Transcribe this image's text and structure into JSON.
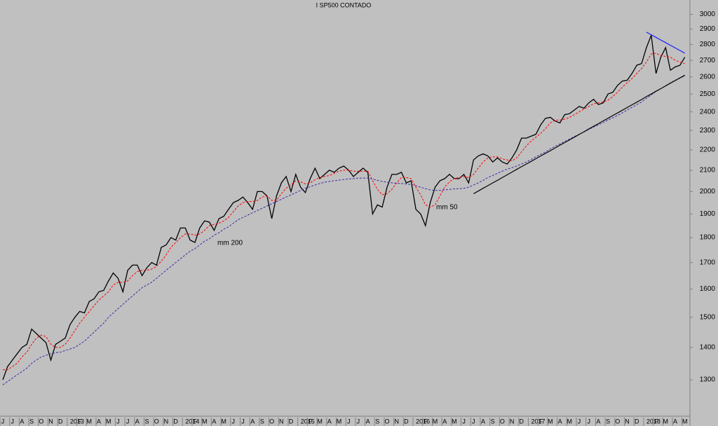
{
  "chart_data": {
    "type": "line",
    "title": "I SP500 CONTADO",
    "log_scale": true,
    "grid": false,
    "ylim": [
      1200,
      3100
    ],
    "yticks": [
      1300,
      1400,
      1500,
      1600,
      1700,
      1800,
      1900,
      2000,
      2100,
      2200,
      2300,
      2400,
      2500,
      2600,
      2700,
      2800,
      2900,
      3000
    ],
    "categories": [
      "J",
      null,
      "J",
      null,
      "A",
      null,
      "S",
      null,
      "O",
      null,
      "N",
      null,
      "D",
      null,
      "2013",
      null,
      "F",
      null,
      "M",
      null,
      "A",
      null,
      "M",
      null,
      "J",
      null,
      "J",
      null,
      "A",
      null,
      "S",
      null,
      "O",
      null,
      "N",
      null,
      "D",
      null,
      "2014",
      null,
      "F",
      null,
      "M",
      null,
      "A",
      null,
      "M",
      null,
      "J",
      null,
      "J",
      null,
      "A",
      null,
      "S",
      null,
      "O",
      null,
      "N",
      null,
      "D",
      null,
      "2015",
      null,
      "F",
      null,
      "M",
      null,
      "A",
      null,
      "M",
      null,
      "J",
      null,
      "J",
      null,
      "A",
      null,
      "S",
      null,
      "O",
      null,
      "N",
      null,
      "D",
      null,
      "2016",
      null,
      "F",
      null,
      "M",
      null,
      "A",
      null,
      "M",
      null,
      "J",
      null,
      "J",
      null,
      "A",
      null,
      "S",
      null,
      "O",
      null,
      "N",
      null,
      "D",
      null,
      "2017",
      null,
      "F",
      null,
      "M",
      null,
      "A",
      null,
      "M",
      null,
      "J",
      null,
      "J",
      null,
      "A",
      null,
      "S",
      null,
      "O",
      null,
      "N",
      null,
      "D",
      null,
      "2018",
      null,
      "F",
      null,
      "M",
      null,
      "A",
      null,
      "M",
      null
    ],
    "series": [
      {
        "color": "#000000",
        "dash": false,
        "values": [
          1300,
          1340,
          1360,
          1380,
          1400,
          1410,
          1460,
          1445,
          1430,
          1415,
          1360,
          1410,
          1420,
          1430,
          1475,
          1500,
          1520,
          1515,
          1555,
          1565,
          1590,
          1595,
          1630,
          1660,
          1640,
          1590,
          1670,
          1690,
          1690,
          1650,
          1680,
          1700,
          1690,
          1760,
          1770,
          1800,
          1790,
          1840,
          1840,
          1790,
          1780,
          1840,
          1870,
          1865,
          1830,
          1880,
          1890,
          1920,
          1950,
          1960,
          1975,
          1950,
          1920,
          2000,
          2000,
          1980,
          1880,
          1980,
          2040,
          2070,
          2000,
          2080,
          2020,
          1995,
          2060,
          2110,
          2060,
          2080,
          2100,
          2090,
          2110,
          2120,
          2100,
          2070,
          2090,
          2110,
          2090,
          1900,
          1940,
          1930,
          2020,
          2080,
          2080,
          2090,
          2040,
          2050,
          1920,
          1900,
          1850,
          1950,
          2020,
          2050,
          2060,
          2080,
          2060,
          2060,
          2080,
          2040,
          2150,
          2170,
          2180,
          2170,
          2140,
          2160,
          2140,
          2130,
          2160,
          2200,
          2260,
          2260,
          2270,
          2280,
          2330,
          2365,
          2370,
          2350,
          2340,
          2385,
          2390,
          2410,
          2430,
          2420,
          2450,
          2470,
          2440,
          2450,
          2500,
          2510,
          2550,
          2575,
          2580,
          2620,
          2670,
          2680,
          2780,
          2860,
          2620,
          2720,
          2780,
          2640,
          2660,
          2670,
          2720,
          null
        ]
      },
      {
        "color": "#ff0000",
        "dash": true,
        "values": [
          1330,
          1330,
          1340,
          1350,
          1370,
          1385,
          1410,
          1430,
          1440,
          1435,
          1410,
          1400,
          1400,
          1410,
          1430,
          1455,
          1480,
          1500,
          1520,
          1540,
          1560,
          1575,
          1590,
          1615,
          1625,
          1625,
          1630,
          1650,
          1665,
          1670,
          1670,
          1675,
          1685,
          1705,
          1730,
          1760,
          1780,
          1800,
          1815,
          1815,
          1810,
          1815,
          1830,
          1850,
          1855,
          1860,
          1870,
          1885,
          1910,
          1935,
          1950,
          1955,
          1955,
          1960,
          1975,
          1980,
          1960,
          1960,
          1990,
          2015,
          2030,
          2050,
          2045,
          2035,
          2040,
          2055,
          2065,
          2070,
          2075,
          2085,
          2095,
          2100,
          2100,
          2095,
          2095,
          2095,
          2095,
          2050,
          2010,
          1985,
          1990,
          2010,
          2040,
          2065,
          2065,
          2060,
          2020,
          1985,
          1940,
          1930,
          1940,
          1980,
          2020,
          2045,
          2060,
          2065,
          2070,
          2065,
          2080,
          2110,
          2140,
          2160,
          2165,
          2165,
          2155,
          2150,
          2145,
          2160,
          2190,
          2220,
          2245,
          2265,
          2285,
          2310,
          2340,
          2355,
          2355,
          2360,
          2370,
          2385,
          2400,
          2415,
          2430,
          2445,
          2450,
          2455,
          2465,
          2485,
          2510,
          2540,
          2565,
          2590,
          2620,
          2650,
          2690,
          2740,
          2745,
          2730,
          2725,
          2720,
          2700,
          2690,
          2680,
          null
        ]
      },
      {
        "color": "#3a2aa8",
        "dash": true,
        "values": [
          1285,
          1295,
          1305,
          1315,
          1325,
          1335,
          1350,
          1360,
          1370,
          1375,
          1380,
          1383,
          1385,
          1390,
          1395,
          1400,
          1410,
          1420,
          1435,
          1450,
          1465,
          1480,
          1500,
          1515,
          1530,
          1545,
          1560,
          1575,
          1590,
          1605,
          1615,
          1625,
          1640,
          1655,
          1670,
          1685,
          1700,
          1715,
          1730,
          1745,
          1755,
          1770,
          1785,
          1795,
          1810,
          1820,
          1835,
          1845,
          1860,
          1875,
          1885,
          1895,
          1905,
          1915,
          1925,
          1935,
          1945,
          1955,
          1965,
          1975,
          1985,
          1995,
          2005,
          2015,
          2022,
          2030,
          2037,
          2043,
          2047,
          2050,
          2053,
          2056,
          2058,
          2060,
          2062,
          2063,
          2062,
          2058,
          2052,
          2047,
          2043,
          2040,
          2038,
          2037,
          2035,
          2032,
          2027,
          2020,
          2013,
          2008,
          2005,
          2005,
          2008,
          2010,
          2012,
          2013,
          2015,
          2020,
          2030,
          2040,
          2052,
          2065,
          2075,
          2085,
          2095,
          2105,
          2112,
          2120,
          2130,
          2140,
          2152,
          2165,
          2178,
          2190,
          2205,
          2218,
          2230,
          2243,
          2255,
          2268,
          2280,
          2292,
          2305,
          2318,
          2330,
          2342,
          2355,
          2368,
          2380,
          2395,
          2410,
          2425,
          2440,
          2455,
          2475,
          2495,
          2515,
          2530,
          2548,
          2565,
          2580,
          2595,
          2605,
          null
        ]
      }
    ],
    "trend_lines": [
      {
        "color": "#000000",
        "values": [
          null,
          null,
          null,
          null,
          null,
          null,
          null,
          null,
          null,
          null,
          null,
          null,
          null,
          null,
          null,
          null,
          null,
          null,
          null,
          null,
          null,
          null,
          null,
          null,
          null,
          null,
          null,
          null,
          null,
          null,
          null,
          null,
          null,
          null,
          null,
          null,
          null,
          null,
          null,
          null,
          null,
          null,
          null,
          null,
          null,
          null,
          null,
          null,
          null,
          null,
          null,
          null,
          null,
          null,
          null,
          null,
          null,
          null,
          null,
          null,
          null,
          null,
          null,
          null,
          null,
          null,
          null,
          null,
          null,
          null,
          null,
          null,
          null,
          null,
          null,
          null,
          null,
          null,
          null,
          null,
          null,
          null,
          null,
          null,
          null,
          null,
          null,
          null,
          null,
          null,
          null,
          null,
          null,
          null,
          null,
          null,
          null,
          null,
          1990,
          2002,
          2015,
          2027,
          2040,
          2052,
          2065,
          2078,
          2091,
          2104,
          2117,
          2130,
          2143,
          2156,
          2170,
          2183,
          2196,
          2210,
          2224,
          2237,
          2251,
          2265,
          2279,
          2293,
          2308,
          2322,
          2336,
          2351,
          2365,
          2380,
          2394,
          2409,
          2424,
          2439,
          2454,
          2469,
          2485,
          2500,
          2516,
          2531,
          2547,
          2563,
          2578,
          2594,
          2610,
          null
        ]
      },
      {
        "color": "#1a1aff",
        "values": [
          null,
          null,
          null,
          null,
          null,
          null,
          null,
          null,
          null,
          null,
          null,
          null,
          null,
          null,
          null,
          null,
          null,
          null,
          null,
          null,
          null,
          null,
          null,
          null,
          null,
          null,
          null,
          null,
          null,
          null,
          null,
          null,
          null,
          null,
          null,
          null,
          null,
          null,
          null,
          null,
          null,
          null,
          null,
          null,
          null,
          null,
          null,
          null,
          null,
          null,
          null,
          null,
          null,
          null,
          null,
          null,
          null,
          null,
          null,
          null,
          null,
          null,
          null,
          null,
          null,
          null,
          null,
          null,
          null,
          null,
          null,
          null,
          null,
          null,
          null,
          null,
          null,
          null,
          null,
          null,
          null,
          null,
          null,
          null,
          null,
          null,
          null,
          null,
          null,
          null,
          null,
          null,
          null,
          null,
          null,
          null,
          null,
          null,
          null,
          null,
          null,
          null,
          null,
          null,
          null,
          null,
          null,
          null,
          null,
          null,
          null,
          null,
          null,
          null,
          null,
          null,
          null,
          null,
          null,
          null,
          null,
          null,
          null,
          null,
          null,
          null,
          null,
          null,
          null,
          null,
          null,
          null,
          null,
          null,
          2880,
          2863,
          2846,
          2829,
          2812,
          2795,
          2778,
          2762,
          2745,
          null
        ]
      }
    ],
    "annotations": [
      {
        "text": "mm 50",
        "color": "#ff0000"
      },
      {
        "text": "mm 200",
        "color": "#3a2aa8"
      }
    ]
  }
}
